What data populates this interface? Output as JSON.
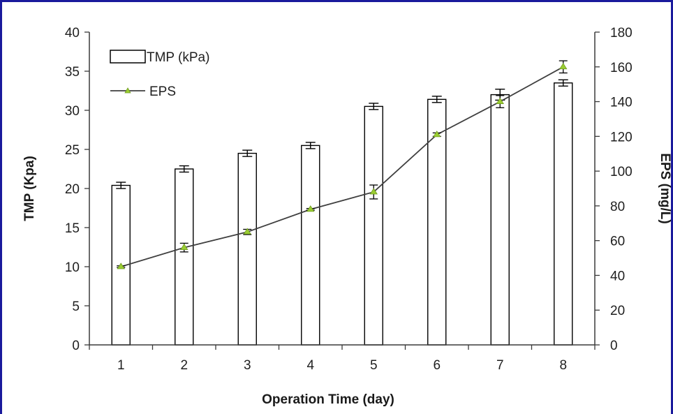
{
  "chart_data": {
    "type": "bar",
    "categories": [
      "1",
      "2",
      "3",
      "4",
      "5",
      "6",
      "7",
      "8"
    ],
    "xlabel": "Operation Time (day)",
    "ylabel": "TMP (Kpa)",
    "y2label": "EPS (mg/L)",
    "ylim": [
      0,
      40
    ],
    "y2lim": [
      0,
      180
    ],
    "yticks": [
      "0",
      "5",
      "10",
      "15",
      "20",
      "25",
      "30",
      "35",
      "40"
    ],
    "y2ticks": [
      "0",
      "20",
      "40",
      "60",
      "80",
      "100",
      "120",
      "140",
      "160",
      "180"
    ],
    "legend_position": "top-left",
    "grid": false,
    "series": [
      {
        "name": "TMP (kPa)",
        "type": "bar",
        "axis": "left",
        "values": [
          20.4,
          22.5,
          24.5,
          25.5,
          30.5,
          31.4,
          32.0,
          33.5
        ],
        "errors": [
          0.4,
          0.4,
          0.4,
          0.4,
          0.4,
          0.4,
          0.7,
          0.4
        ],
        "color": "#ffffff",
        "edge_color": "#000000"
      },
      {
        "name": "EPS",
        "type": "line",
        "axis": "right",
        "values": [
          45,
          56,
          65,
          78,
          88,
          121,
          140,
          160
        ],
        "errors": [
          0.5,
          2.5,
          1.5,
          0.5,
          4.0,
          1.0,
          3.5,
          3.5
        ],
        "color": "#3f3f3f",
        "marker_color": "#9acd32"
      }
    ]
  }
}
